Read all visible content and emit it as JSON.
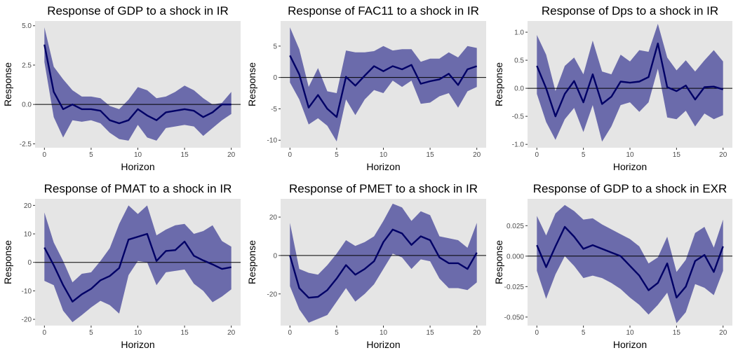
{
  "x_label": "Horizon",
  "y_label": "Response",
  "colors": {
    "panel_background": "#e5e5e5",
    "band_fill": "#6b6bab",
    "line": "#000066",
    "zero_line": "#000000",
    "tick_text": "#4d4d4d",
    "title_text": "#000000"
  },
  "chart_data": [
    {
      "type": "line",
      "title": "Response of GDP to a shock in IR",
      "xlabel": "Horizon",
      "ylabel": "Response",
      "x": [
        0,
        1,
        2,
        3,
        4,
        5,
        6,
        7,
        8,
        9,
        10,
        11,
        12,
        13,
        14,
        15,
        16,
        17,
        18,
        19,
        20
      ],
      "xlim": [
        -1,
        21
      ],
      "ylim": [
        -2.75,
        5.3
      ],
      "xticks": [
        0,
        5,
        10,
        15,
        20
      ],
      "yticks": [
        -2.5,
        0.0,
        2.5,
        5.0
      ],
      "ytick_labels": [
        "-2.5",
        "0.0",
        "2.5",
        "5.0"
      ],
      "series": [
        {
          "role": "estimate",
          "values": [
            3.8,
            0.8,
            -0.3,
            0.0,
            -0.3,
            -0.3,
            -0.4,
            -1.0,
            -1.2,
            -1.0,
            -0.3,
            -0.7,
            -1.0,
            -0.5,
            -0.4,
            -0.3,
            -0.4,
            -0.8,
            -0.5,
            0.0,
            0.0
          ]
        },
        {
          "role": "lower",
          "values": [
            2.7,
            -0.8,
            -2.1,
            -1.0,
            -1.1,
            -1.0,
            -1.2,
            -1.8,
            -2.2,
            -2.3,
            -1.3,
            -2.1,
            -2.3,
            -1.5,
            -1.4,
            -1.3,
            -1.4,
            -2.0,
            -1.5,
            -1.0,
            -0.6
          ]
        },
        {
          "role": "upper",
          "values": [
            4.9,
            2.4,
            1.6,
            0.9,
            0.5,
            0.5,
            0.4,
            -0.1,
            -0.3,
            0.3,
            1.1,
            0.9,
            0.4,
            0.5,
            0.8,
            1.2,
            0.9,
            0.4,
            0.0,
            0.1,
            0.8
          ]
        }
      ]
    },
    {
      "type": "line",
      "title": "Response of FAC11 to a shock in IR",
      "xlabel": "Horizon",
      "ylabel": "Response",
      "x": [
        0,
        1,
        2,
        3,
        4,
        5,
        6,
        7,
        8,
        9,
        10,
        11,
        12,
        13,
        14,
        15,
        16,
        17,
        18,
        19,
        20
      ],
      "xlim": [
        -1,
        21
      ],
      "ylim": [
        -11.2,
        9.0
      ],
      "xticks": [
        0,
        5,
        10,
        15,
        20
      ],
      "yticks": [
        -10,
        -5,
        0,
        5
      ],
      "ytick_labels": [
        "-10",
        "-5",
        "0",
        "5"
      ],
      "series": [
        {
          "role": "estimate",
          "values": [
            3.5,
            0.5,
            -4.8,
            -2.8,
            -5.0,
            -6.3,
            0.1,
            -1.3,
            0.3,
            1.8,
            1.0,
            1.8,
            1.3,
            2.0,
            -1.0,
            -0.6,
            -0.3,
            0.6,
            -1.2,
            1.3,
            1.8
          ]
        },
        {
          "role": "lower",
          "values": [
            -0.8,
            -3.5,
            -7.5,
            -6.5,
            -7.7,
            -10.2,
            -3.5,
            -6.0,
            -3.5,
            -2.0,
            -2.5,
            -0.5,
            -1.5,
            -0.5,
            -4.2,
            -4.0,
            -3.0,
            -2.5,
            -4.8,
            -2.2,
            -1.5
          ]
        },
        {
          "role": "upper",
          "values": [
            8.0,
            4.5,
            -1.5,
            1.5,
            -2.2,
            -2.5,
            4.3,
            4.0,
            4.0,
            4.2,
            5.0,
            4.3,
            4.5,
            4.5,
            2.5,
            3.0,
            3.0,
            4.0,
            3.2,
            5.0,
            4.7
          ]
        }
      ]
    },
    {
      "type": "line",
      "title": "Response of Dps to a shock in IR",
      "xlabel": "Horizon",
      "ylabel": "Response",
      "x": [
        0,
        1,
        2,
        3,
        4,
        5,
        6,
        7,
        8,
        9,
        10,
        11,
        12,
        13,
        14,
        15,
        16,
        17,
        18,
        19,
        20
      ],
      "xlim": [
        -1,
        21
      ],
      "ylim": [
        -1.06,
        1.2
      ],
      "xticks": [
        0,
        5,
        10,
        15,
        20
      ],
      "yticks": [
        -1.0,
        -0.5,
        0.0,
        0.5,
        1.0
      ],
      "ytick_labels": [
        "-1.0",
        "-0.5",
        "0.0",
        "0.5",
        "1.0"
      ],
      "series": [
        {
          "role": "estimate",
          "values": [
            0.4,
            0.0,
            -0.5,
            -0.1,
            0.13,
            -0.25,
            0.25,
            -0.28,
            -0.15,
            0.12,
            0.1,
            0.12,
            0.2,
            0.8,
            0.02,
            -0.05,
            0.05,
            -0.2,
            0.02,
            0.03,
            -0.02
          ]
        },
        {
          "role": "lower",
          "values": [
            -0.1,
            -0.6,
            -0.92,
            -0.55,
            -0.35,
            -0.78,
            -0.3,
            -0.95,
            -0.68,
            -0.3,
            -0.25,
            -0.42,
            -0.25,
            0.35,
            -0.52,
            -0.55,
            -0.4,
            -0.68,
            -0.45,
            -0.55,
            -0.48
          ]
        },
        {
          "role": "upper",
          "values": [
            0.95,
            0.6,
            -0.05,
            0.4,
            0.55,
            0.25,
            0.85,
            0.3,
            0.25,
            0.6,
            0.48,
            0.68,
            0.65,
            1.15,
            0.55,
            0.32,
            0.5,
            0.3,
            0.5,
            0.68,
            0.48
          ]
        }
      ]
    },
    {
      "type": "line",
      "title": "Response of PMAT to a shock in IR",
      "xlabel": "Horizon",
      "ylabel": "Response",
      "x": [
        0,
        1,
        2,
        3,
        4,
        5,
        6,
        7,
        8,
        9,
        10,
        11,
        12,
        13,
        14,
        15,
        16,
        17,
        18,
        19,
        20
      ],
      "xlim": [
        -1,
        21
      ],
      "ylim": [
        -22.2,
        22.3
      ],
      "xticks": [
        0,
        5,
        10,
        15,
        20
      ],
      "yticks": [
        -20,
        -10,
        0,
        10,
        20
      ],
      "ytick_labels": [
        "-20",
        "-10",
        "0",
        "10",
        "20"
      ],
      "series": [
        {
          "role": "estimate",
          "values": [
            5.2,
            -1.0,
            -8.0,
            -13.8,
            -11.2,
            -9.3,
            -6.3,
            -4.8,
            -2.0,
            8.0,
            9.0,
            10.0,
            0.5,
            4.0,
            4.3,
            7.3,
            2.3,
            0.7,
            -0.7,
            -2.3,
            -1.7
          ]
        },
        {
          "role": "lower",
          "values": [
            -6.5,
            -8.0,
            -17.0,
            -21.0,
            -18.5,
            -15.8,
            -13.5,
            -15.0,
            -18.0,
            -4.5,
            0.5,
            0.0,
            -8.0,
            -3.5,
            -3.0,
            -2.5,
            -7.5,
            -10.0,
            -14.0,
            -12.0,
            -9.5
          ]
        },
        {
          "role": "upper",
          "values": [
            17.5,
            7.0,
            0.5,
            -7.0,
            -4.0,
            -3.5,
            0.5,
            5.0,
            13.5,
            20.0,
            17.0,
            20.0,
            9.5,
            11.5,
            13.0,
            13.5,
            10.0,
            11.0,
            13.0,
            7.5,
            5.5
          ]
        }
      ]
    },
    {
      "type": "line",
      "title": "Response of PMET to a shock in IR",
      "xlabel": "Horizon",
      "ylabel": "Response",
      "x": [
        0,
        1,
        2,
        3,
        4,
        5,
        6,
        7,
        8,
        9,
        10,
        11,
        12,
        13,
        14,
        15,
        16,
        17,
        18,
        19,
        20
      ],
      "xlim": [
        -1,
        21
      ],
      "ylim": [
        -36.5,
        29.5
      ],
      "xticks": [
        0,
        5,
        10,
        15,
        20
      ],
      "yticks": [
        -20,
        0,
        20
      ],
      "ytick_labels": [
        "-20",
        "0",
        "20"
      ],
      "series": [
        {
          "role": "estimate",
          "values": [
            0.0,
            -17.0,
            -22.0,
            -21.5,
            -18.0,
            -12.0,
            -5.0,
            -10.0,
            -7.0,
            -3.0,
            7.0,
            13.5,
            11.5,
            5.5,
            10.0,
            8.0,
            -1.0,
            -4.0,
            -4.0,
            -7.0,
            1.5
          ]
        },
        {
          "role": "lower",
          "values": [
            -16.0,
            -28.0,
            -35.0,
            -33.0,
            -31.0,
            -24.0,
            -17.0,
            -24.0,
            -20.0,
            -15.0,
            -7.0,
            1.0,
            -1.0,
            -7.0,
            -2.0,
            -3.0,
            -12.0,
            -17.0,
            -17.0,
            -18.0,
            -14.0
          ]
        },
        {
          "role": "upper",
          "values": [
            17.0,
            -7.0,
            -9.0,
            -10.0,
            -5.0,
            1.0,
            8.0,
            5.0,
            7.0,
            10.0,
            18.0,
            27.0,
            25.0,
            18.0,
            23.0,
            21.0,
            10.0,
            9.0,
            8.0,
            4.0,
            17.0
          ]
        }
      ]
    },
    {
      "type": "line",
      "title": "Response of GDP to a shock in EXR",
      "xlabel": "Horizon",
      "ylabel": "Response",
      "x": [
        0,
        1,
        2,
        3,
        4,
        5,
        6,
        7,
        8,
        9,
        10,
        11,
        12,
        13,
        14,
        15,
        16,
        17,
        18,
        19,
        20
      ],
      "xlim": [
        -1,
        21
      ],
      "ylim": [
        -0.057,
        0.047
      ],
      "xticks": [
        0,
        5,
        10,
        15,
        20
      ],
      "yticks": [
        -0.05,
        -0.025,
        0.0,
        0.025
      ],
      "ytick_labels": [
        "-0.050",
        "-0.025",
        "0.000",
        "0.025"
      ],
      "series": [
        {
          "role": "estimate",
          "values": [
            0.009,
            -0.009,
            0.008,
            0.024,
            0.016,
            0.006,
            0.009,
            0.006,
            0.003,
            0.0,
            -0.008,
            -0.016,
            -0.028,
            -0.022,
            -0.006,
            -0.034,
            -0.025,
            -0.004,
            0.001,
            -0.013,
            0.008
          ]
        },
        {
          "role": "lower",
          "values": [
            -0.012,
            -0.035,
            -0.015,
            0.0,
            -0.008,
            -0.018,
            -0.016,
            -0.018,
            -0.022,
            -0.027,
            -0.034,
            -0.04,
            -0.048,
            -0.04,
            -0.03,
            -0.055,
            -0.046,
            -0.023,
            -0.026,
            -0.032,
            -0.012
          ]
        },
        {
          "role": "upper",
          "values": [
            0.033,
            0.017,
            0.035,
            0.042,
            0.037,
            0.03,
            0.031,
            0.026,
            0.022,
            0.018,
            0.014,
            0.008,
            -0.006,
            -0.001,
            0.016,
            -0.013,
            -0.003,
            0.019,
            0.024,
            0.007,
            0.03
          ]
        }
      ]
    }
  ]
}
